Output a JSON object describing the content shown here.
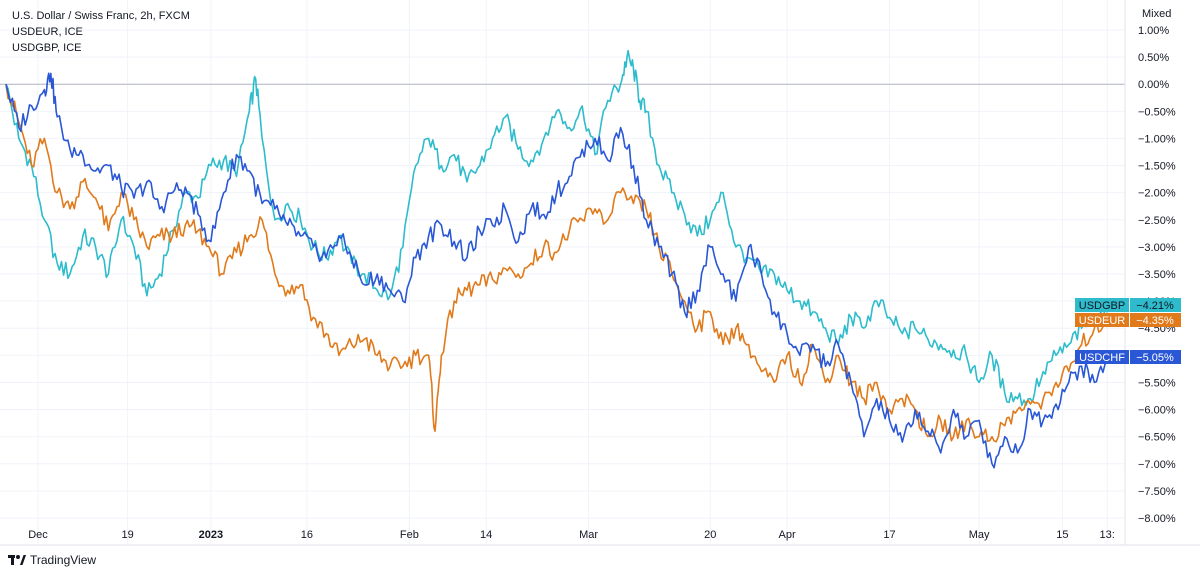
{
  "legend": {
    "line1": "U.S. Dollar / Swiss Franc, 2h, FXCM",
    "line2": "USDEUR, ICE",
    "line3": "USDGBP, ICE"
  },
  "scale_mode": "Mixed",
  "brand": "TradingView",
  "colors": {
    "USDCHF": "#2a57d6",
    "USDEUR": "#e07a1b",
    "USDGBP": "#2ebccc",
    "grid": "#f0f3fa",
    "zero_line": "#b2b5be",
    "axis_text": "#131722"
  },
  "chart_data": {
    "type": "line",
    "title": "U.S. Dollar / Swiss Franc, 2h, FXCM",
    "y_unit": "%",
    "ylim": [
      -8.0,
      1.0
    ],
    "y_ticks": [
      1.0,
      0.5,
      0.0,
      -0.5,
      -1.0,
      -1.5,
      -2.0,
      -2.5,
      -3.0,
      -3.5,
      -4.0,
      -4.5,
      -5.0,
      -5.5,
      -6.0,
      -6.5,
      -7.0,
      -7.5,
      -8.0
    ],
    "y_tick_labels": [
      "1.00%",
      "0.50%",
      "0.00%",
      "−0.50%",
      "−1.00%",
      "−1.50%",
      "−2.00%",
      "−2.50%",
      "−3.00%",
      "−3.50%",
      "−4.00%",
      "−4.50%",
      "−5.00%",
      "−5.50%",
      "−6.00%",
      "−6.50%",
      "−7.00%",
      "−7.50%",
      "−8.00%"
    ],
    "x_ticks": [
      {
        "day": 5,
        "label": "Dec",
        "bold": false
      },
      {
        "day": 19,
        "label": "19",
        "bold": false
      },
      {
        "day": 32,
        "label": "2023",
        "bold": true
      },
      {
        "day": 47,
        "label": "16",
        "bold": false
      },
      {
        "day": 63,
        "label": "Feb",
        "bold": false
      },
      {
        "day": 75,
        "label": "14",
        "bold": false
      },
      {
        "day": 91,
        "label": "Mar",
        "bold": false
      },
      {
        "day": 110,
        "label": "20",
        "bold": false
      },
      {
        "day": 122,
        "label": "Apr",
        "bold": false
      },
      {
        "day": 138,
        "label": "17",
        "bold": false
      },
      {
        "day": 152,
        "label": "May",
        "bold": false
      },
      {
        "day": 165,
        "label": "15",
        "bold": false
      },
      {
        "day": 172,
        "label": "13:",
        "bold": false
      }
    ],
    "x_range": [
      0,
      174
    ],
    "series": [
      {
        "name": "USDGBP",
        "last_label": "−4.21%",
        "x": [
          0,
          2,
          4,
          6,
          8,
          10,
          12,
          14,
          16,
          18,
          20,
          22,
          24,
          26,
          28,
          30,
          32,
          34,
          36,
          38,
          39,
          40,
          42,
          44,
          46,
          48,
          50,
          52,
          54,
          56,
          58,
          60,
          62,
          64,
          66,
          68,
          70,
          72,
          74,
          76,
          78,
          80,
          82,
          84,
          86,
          88,
          90,
          92,
          94,
          96,
          97,
          98,
          99,
          100,
          102,
          104,
          106,
          108,
          110,
          112,
          114,
          116,
          118,
          120,
          122,
          124,
          126,
          128,
          130,
          132,
          134,
          136,
          138,
          140,
          142,
          144,
          146,
          148,
          150,
          152,
          154,
          156,
          158,
          160,
          162,
          164,
          166,
          168,
          170,
          172
        ],
        "y": [
          0.0,
          -1.0,
          -1.5,
          -2.5,
          -3.3,
          -3.5,
          -2.8,
          -3.0,
          -3.5,
          -2.5,
          -3.0,
          -3.9,
          -3.5,
          -2.7,
          -2.0,
          -2.1,
          -1.5,
          -1.4,
          -1.7,
          -0.5,
          0.1,
          -1.0,
          -2.5,
          -2.2,
          -2.5,
          -3.0,
          -3.2,
          -2.8,
          -3.3,
          -3.5,
          -3.8,
          -3.9,
          -3.0,
          -1.5,
          -1.0,
          -1.5,
          -1.3,
          -1.8,
          -1.5,
          -1.0,
          -0.6,
          -1.2,
          -1.4,
          -1.0,
          -0.5,
          -0.8,
          -0.4,
          -1.3,
          -0.3,
          0.0,
          0.5,
          0.3,
          -0.3,
          -0.5,
          -1.5,
          -2.0,
          -2.4,
          -2.8,
          -2.5,
          -2.0,
          -3.0,
          -3.2,
          -3.5,
          -3.5,
          -3.8,
          -4.0,
          -4.2,
          -4.5,
          -4.8,
          -4.3,
          -4.5,
          -4.0,
          -4.3,
          -4.6,
          -4.5,
          -4.7,
          -4.8,
          -4.9,
          -5.0,
          -5.5,
          -5.0,
          -5.7,
          -5.8,
          -5.8,
          -5.3,
          -5.0,
          -4.8,
          -4.5,
          -4.3,
          -4.21
        ]
      },
      {
        "name": "USDEUR",
        "last_label": "−4.35%",
        "x": [
          0,
          2,
          4,
          6,
          8,
          10,
          12,
          14,
          16,
          18,
          20,
          22,
          24,
          26,
          28,
          30,
          32,
          34,
          36,
          38,
          40,
          42,
          44,
          46,
          48,
          50,
          52,
          54,
          56,
          58,
          60,
          62,
          64,
          66,
          67,
          68,
          70,
          72,
          74,
          76,
          78,
          80,
          82,
          84,
          86,
          88,
          90,
          92,
          94,
          96,
          98,
          100,
          102,
          104,
          106,
          108,
          110,
          112,
          114,
          116,
          118,
          120,
          122,
          124,
          126,
          128,
          130,
          132,
          134,
          136,
          138,
          140,
          142,
          144,
          146,
          148,
          150,
          152,
          154,
          156,
          158,
          160,
          162,
          164,
          166,
          168,
          170,
          172
        ],
        "y": [
          0.0,
          -0.7,
          -1.5,
          -1.0,
          -2.0,
          -2.3,
          -1.8,
          -2.1,
          -2.7,
          -2.0,
          -2.5,
          -3.0,
          -2.8,
          -2.8,
          -2.6,
          -2.7,
          -3.1,
          -3.5,
          -3.1,
          -2.8,
          -2.5,
          -3.5,
          -3.8,
          -3.7,
          -4.3,
          -4.6,
          -5.0,
          -4.8,
          -4.7,
          -5.0,
          -5.2,
          -5.2,
          -5.0,
          -5.0,
          -6.4,
          -5.0,
          -4.0,
          -3.8,
          -3.7,
          -3.6,
          -3.4,
          -3.5,
          -3.3,
          -3.0,
          -3.1,
          -2.7,
          -2.5,
          -2.3,
          -2.5,
          -2.0,
          -2.2,
          -2.3,
          -3.0,
          -3.5,
          -4.0,
          -4.5,
          -4.2,
          -4.8,
          -4.5,
          -4.8,
          -5.3,
          -5.5,
          -5.0,
          -5.5,
          -4.8,
          -5.5,
          -5.0,
          -5.5,
          -5.8,
          -5.5,
          -6.0,
          -5.8,
          -6.0,
          -6.5,
          -6.2,
          -6.5,
          -6.2,
          -6.5,
          -6.5,
          -6.3,
          -6.0,
          -5.9,
          -5.8,
          -5.5,
          -5.3,
          -4.8,
          -4.5,
          -4.35
        ]
      },
      {
        "name": "USDCHF",
        "last_label": "−5.05%",
        "x": [
          0,
          2,
          4,
          6,
          7,
          8,
          10,
          12,
          14,
          16,
          18,
          20,
          22,
          24,
          26,
          28,
          30,
          32,
          34,
          36,
          38,
          40,
          42,
          44,
          46,
          48,
          50,
          52,
          54,
          56,
          58,
          60,
          62,
          64,
          66,
          68,
          70,
          72,
          74,
          76,
          78,
          80,
          82,
          84,
          86,
          88,
          90,
          92,
          94,
          96,
          98,
          100,
          102,
          104,
          106,
          108,
          110,
          112,
          114,
          116,
          118,
          120,
          122,
          124,
          126,
          128,
          130,
          132,
          134,
          136,
          138,
          140,
          142,
          144,
          146,
          148,
          150,
          152,
          154,
          156,
          158,
          160,
          162,
          164,
          166,
          168,
          170,
          172
        ],
        "y": [
          0.0,
          -0.8,
          -0.4,
          -0.1,
          0.2,
          -0.6,
          -1.2,
          -1.3,
          -1.6,
          -1.5,
          -1.9,
          -2.1,
          -1.8,
          -2.3,
          -2.0,
          -1.9,
          -2.4,
          -2.9,
          -2.0,
          -1.3,
          -1.6,
          -2.2,
          -2.3,
          -2.6,
          -2.8,
          -3.0,
          -3.2,
          -2.8,
          -3.2,
          -3.7,
          -3.5,
          -3.8,
          -4.0,
          -3.2,
          -2.8,
          -2.6,
          -2.9,
          -3.2,
          -2.7,
          -2.6,
          -2.3,
          -2.9,
          -2.3,
          -2.4,
          -2.0,
          -1.7,
          -1.2,
          -1.0,
          -1.4,
          -0.8,
          -1.5,
          -2.5,
          -3.0,
          -3.5,
          -4.2,
          -3.8,
          -3.0,
          -3.5,
          -4.0,
          -3.0,
          -3.5,
          -4.2,
          -4.6,
          -5.0,
          -4.8,
          -5.2,
          -4.8,
          -5.5,
          -6.5,
          -5.8,
          -6.2,
          -6.6,
          -6.0,
          -6.4,
          -6.8,
          -6.0,
          -6.5,
          -6.2,
          -7.0,
          -6.5,
          -6.8,
          -6.0,
          -6.2,
          -5.9,
          -5.5,
          -5.2,
          -5.5,
          -5.05
        ]
      }
    ]
  }
}
